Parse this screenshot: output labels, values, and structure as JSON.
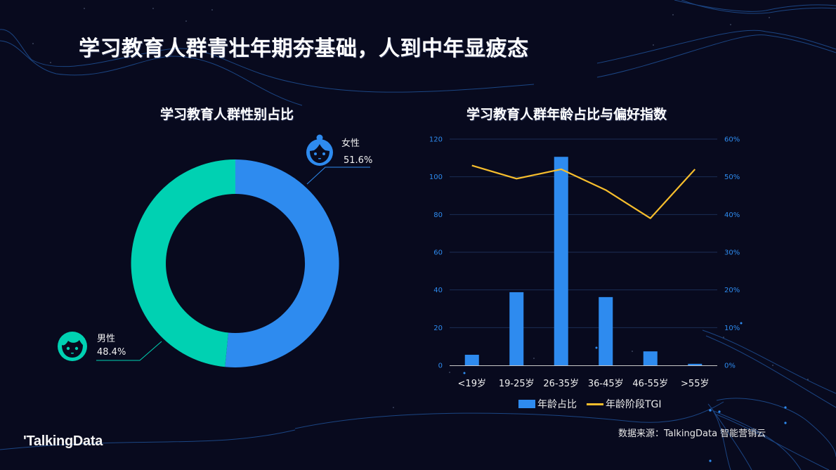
{
  "page": {
    "title": "学习教育人群青壮年期夯基础，人到中年显疲态",
    "source": "数据来源：TalkingData 智能营销云",
    "logo": "'TalkingData"
  },
  "colors": {
    "background": "#080A1E",
    "female": "#2E8BEF",
    "male": "#00D1B2",
    "bar": "#2E8BEF",
    "line": "#F7BE2D",
    "grid": "#1B2E55",
    "axis_text": "#2E8BEF"
  },
  "donut": {
    "title": "学习教育人群性别占比",
    "female": {
      "label": "女性",
      "value_text": "51.6%",
      "icon": "female-face-icon"
    },
    "male": {
      "label": "男性",
      "value_text": "48.4%",
      "icon": "male-face-icon"
    }
  },
  "combo": {
    "title": "学习教育人群年龄占比与偏好指数",
    "left_ticks": [
      "0",
      "20",
      "40",
      "60",
      "80",
      "100",
      "120"
    ],
    "right_ticks": [
      "0%",
      "10%",
      "20%",
      "30%",
      "40%",
      "50%",
      "60%"
    ],
    "categories": [
      "<19岁",
      "19-25岁",
      "26-35岁",
      "36-45岁",
      "46-55岁",
      ">55岁"
    ],
    "legend": {
      "bar": "年龄占比",
      "line": "年龄阶段TGI"
    }
  },
  "chart_data": [
    {
      "type": "pie",
      "title": "学习教育人群性别占比",
      "categories": [
        "女性",
        "男性"
      ],
      "values": [
        51.6,
        48.4
      ],
      "unit": "%",
      "donut": true
    },
    {
      "type": "bar",
      "title": "学习教育人群年龄占比与偏好指数",
      "categories": [
        "<19岁",
        "19-25岁",
        "26-35岁",
        "36-45岁",
        "46-55岁",
        ">55岁"
      ],
      "series": [
        {
          "name": "年龄占比",
          "type": "bar",
          "axis": "right",
          "unit": "%",
          "values": [
            2.8,
            19.4,
            55.3,
            18.1,
            3.7,
            0.4
          ]
        },
        {
          "name": "年龄阶段TGI",
          "type": "line",
          "axis": "left",
          "values": [
            106,
            99,
            104,
            93,
            78,
            104
          ]
        }
      ],
      "ylim_left": [
        0,
        120
      ],
      "ylim_right": [
        0,
        60
      ],
      "yticks_left": [
        0,
        20,
        40,
        60,
        80,
        100,
        120
      ],
      "yticks_right": [
        "0%",
        "10%",
        "20%",
        "30%",
        "40%",
        "50%",
        "60%"
      ],
      "grid": true,
      "legend_position": "bottom"
    }
  ]
}
